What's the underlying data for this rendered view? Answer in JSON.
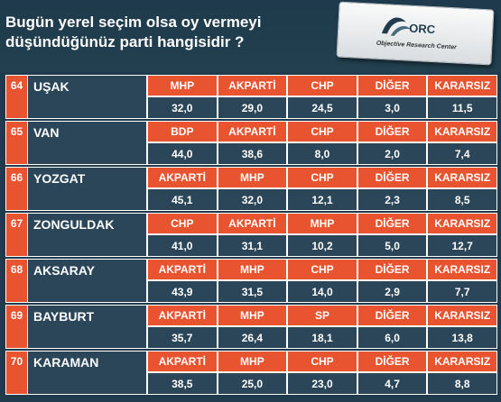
{
  "header": {
    "title_line1": "Bugün yerel seçim olsa oy vermeyi",
    "title_line2": "düşündüğünüz  parti hangisidir ?",
    "logo_text": "Objective Research Center",
    "logo_mark": "ORC"
  },
  "chart_data": {
    "type": "table",
    "rows": [
      {
        "num": "64",
        "province": "UŞAK",
        "parties": [
          "MHP",
          "AKPARTİ",
          "CHP",
          "DİĞER",
          "KARARSIZ"
        ],
        "values": [
          "32,0",
          "29,0",
          "24,5",
          "3,0",
          "11,5"
        ]
      },
      {
        "num": "65",
        "province": "VAN",
        "parties": [
          "BDP",
          "AKPARTİ",
          "CHP",
          "DİĞER",
          "KARARSIZ"
        ],
        "values": [
          "44,0",
          "38,6",
          "8,0",
          "2,0",
          "7,4"
        ]
      },
      {
        "num": "66",
        "province": "YOZGAT",
        "parties": [
          "AKPARTİ",
          "MHP",
          "CHP",
          "DİĞER",
          "KARARSIZ"
        ],
        "values": [
          "45,1",
          "32,0",
          "12,1",
          "2,3",
          "8,5"
        ]
      },
      {
        "num": "67",
        "province": "ZONGULDAK",
        "parties": [
          "CHP",
          "AKPARTİ",
          "MHP",
          "DİĞER",
          "KARARSIZ"
        ],
        "values": [
          "41,0",
          "31,1",
          "10,2",
          "5,0",
          "12,7"
        ]
      },
      {
        "num": "68",
        "province": "AKSARAY",
        "parties": [
          "AKPARTİ",
          "MHP",
          "CHP",
          "DİĞER",
          "KARARSIZ"
        ],
        "values": [
          "43,9",
          "31,5",
          "14,0",
          "2,9",
          "7,7"
        ]
      },
      {
        "num": "69",
        "province": "BAYBURT",
        "parties": [
          "AKPARTİ",
          "MHP",
          "SP",
          "DİĞER",
          "KARARSIZ"
        ],
        "values": [
          "35,7",
          "26,4",
          "18,1",
          "6,0",
          "13,8"
        ]
      },
      {
        "num": "70",
        "province": "KARAMAN",
        "parties": [
          "AKPARTİ",
          "MHP",
          "CHP",
          "DİĞER",
          "KARARSIZ"
        ],
        "values": [
          "38,5",
          "25,0",
          "23,0",
          "4,7",
          "8,8"
        ]
      }
    ]
  },
  "colors": {
    "background": "#1f3b4d",
    "party_cell": "#e8542f",
    "value_cell": "#2a4658"
  }
}
